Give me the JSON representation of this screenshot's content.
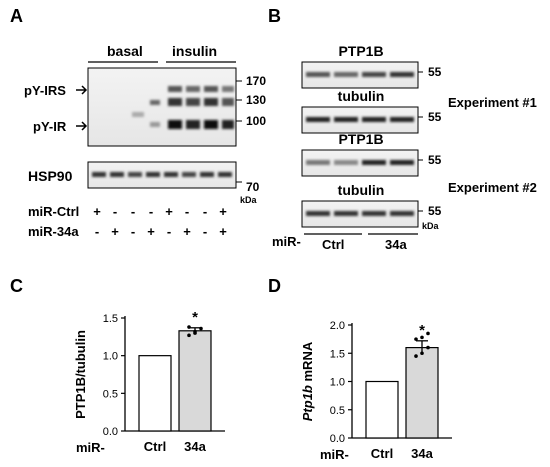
{
  "panels": {
    "A": {
      "label": "A",
      "group_basal": "basal",
      "group_insulin": "insulin",
      "band_labels": [
        "pY-IRS",
        "pY-IR"
      ],
      "mw_markers": [
        "170",
        "130",
        "100"
      ],
      "loading_label": "HSP90",
      "loading_marker": "70",
      "unit": "kDa",
      "rows": [
        {
          "label": "miR-Ctrl",
          "signs": [
            "+",
            "-",
            "-",
            "+",
            "-",
            "+",
            "-"
          ]
        },
        {
          "label": "miR-34a",
          "signs": [
            "-",
            "+",
            "-",
            "+",
            "-",
            "+",
            "-"
          ]
        }
      ],
      "row_extra_first": [
        "+",
        "-",
        "-",
        "-",
        "+",
        "-",
        "-",
        "+"
      ],
      "row_extra_second": [
        "-",
        "+",
        "-",
        "+",
        "-",
        "+",
        "-",
        "+"
      ]
    },
    "B": {
      "label": "B",
      "blots": [
        {
          "title": "PTP1B",
          "marker": "55"
        },
        {
          "title": "tubulin",
          "marker": "55"
        },
        {
          "title": "PTP1B",
          "marker": "55"
        },
        {
          "title": "tubulin",
          "marker": "55"
        }
      ],
      "experiment_1": "Experiment #1",
      "experiment_2": "Experiment #2",
      "unit": "kDa",
      "mir_label": "miR-",
      "group_ctrl": "Ctrl",
      "group_34a": "34a"
    },
    "C": {
      "label": "C",
      "significance": "*",
      "mir_label": "miR-"
    },
    "D": {
      "label": "D",
      "significance": "*",
      "mir_label": "miR-"
    }
  },
  "chart_data": [
    {
      "type": "bar",
      "panel": "C",
      "categories": [
        "Ctrl",
        "34a"
      ],
      "values": [
        1.0,
        1.33
      ],
      "errors": [
        0,
        0.04
      ],
      "points_34a": [
        1.27,
        1.32,
        1.36,
        1.38,
        1.3
      ],
      "ylabel": "PTP1B/tubulin",
      "ylim": [
        0,
        1.5
      ],
      "yticks": [
        "0.0",
        "0.5",
        "1.0",
        "1.5"
      ],
      "bar_colors": [
        "#ffffff",
        "#d9d9d9"
      ]
    },
    {
      "type": "bar",
      "panel": "D",
      "categories": [
        "Ctrl",
        "34a"
      ],
      "values": [
        1.0,
        1.6
      ],
      "errors": [
        0,
        0.12
      ],
      "points_34a": [
        1.45,
        1.5,
        1.6,
        1.75,
        1.78,
        1.85
      ],
      "ylabel_italic": "Ptp1b",
      "ylabel_rest": " mRNA",
      "ylim": [
        0,
        2.0
      ],
      "yticks": [
        "0.0",
        "0.5",
        "1.0",
        "1.5",
        "2.0"
      ],
      "bar_colors": [
        "#ffffff",
        "#d9d9d9"
      ]
    }
  ]
}
